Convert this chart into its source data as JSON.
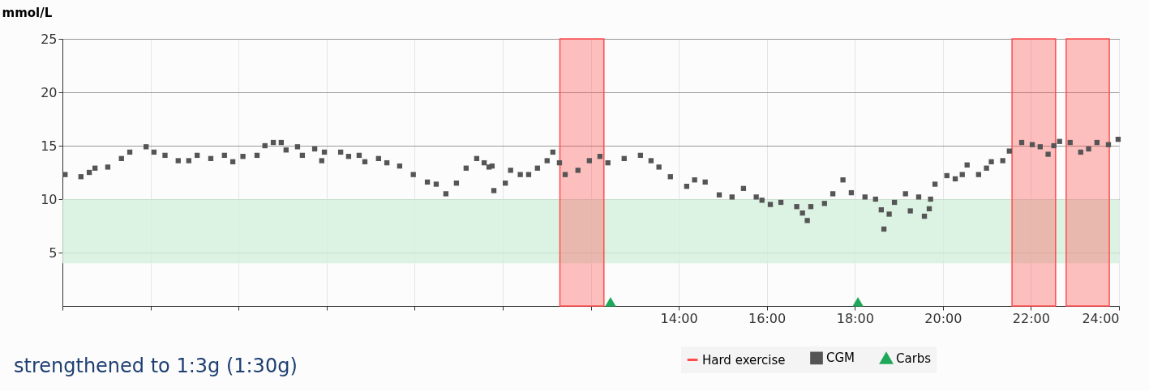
{
  "chart_data": {
    "type": "scatter",
    "ylabel": "mmol/L",
    "xlim": [
      0,
      24
    ],
    "ylim": [
      0,
      25
    ],
    "xticks": [
      {
        "value": 0,
        "label": null
      },
      {
        "value": 2,
        "label": null
      },
      {
        "value": 4,
        "label": null
      },
      {
        "value": 6,
        "label": null
      },
      {
        "value": 8,
        "label": null
      },
      {
        "value": 10,
        "label": null
      },
      {
        "value": 12,
        "label": null
      },
      {
        "value": 14,
        "label": "14:00"
      },
      {
        "value": 16,
        "label": "16:00"
      },
      {
        "value": 18,
        "label": "18:00"
      },
      {
        "value": 20,
        "label": "20:00"
      },
      {
        "value": 22,
        "label": "22:00"
      },
      {
        "value": 24,
        "label": "24:00"
      }
    ],
    "yticks": [
      5,
      10,
      15,
      20,
      25
    ],
    "grid": true,
    "legend": "bottom right",
    "series": [
      {
        "name": "CGM",
        "marker": "square",
        "color": "#555555",
        "x": [
          0.06,
          0.42,
          0.61,
          0.74,
          1.03,
          1.34,
          1.53,
          1.9,
          2.08,
          2.33,
          2.63,
          2.87,
          3.06,
          3.37,
          3.68,
          3.87,
          4.1,
          4.42,
          4.6,
          4.79,
          4.97,
          5.08,
          5.34,
          5.45,
          5.73,
          5.89,
          5.95,
          6.32,
          6.5,
          6.74,
          6.87,
          7.18,
          7.37,
          7.66,
          7.97,
          8.29,
          8.49,
          8.71,
          8.95,
          9.17,
          9.41,
          9.58,
          9.69,
          9.76,
          9.8,
          10.06,
          10.18,
          10.4,
          10.59,
          10.79,
          11.01,
          11.14,
          11.29,
          11.42,
          11.71,
          11.97,
          12.21,
          12.39,
          12.76,
          13.13,
          13.37,
          13.55,
          13.81,
          14.18,
          14.36,
          14.6,
          14.92,
          15.21,
          15.47,
          15.76,
          15.89,
          16.08,
          16.32,
          16.68,
          16.81,
          16.92,
          17.0,
          17.31,
          17.5,
          17.73,
          17.92,
          18.23,
          18.47,
          18.6,
          18.66,
          18.78,
          18.9,
          19.15,
          19.26,
          19.45,
          19.58,
          19.69,
          19.72,
          19.82,
          20.09,
          20.28,
          20.44,
          20.55,
          20.81,
          20.99,
          21.1,
          21.36,
          21.51,
          21.79,
          22.03,
          22.21,
          22.39,
          22.52,
          22.65,
          22.89,
          23.13,
          23.31,
          23.5,
          23.76,
          23.98
        ],
        "values": [
          12.3,
          12.1,
          12.5,
          12.9,
          13.0,
          13.8,
          14.4,
          14.9,
          14.4,
          14.1,
          13.6,
          13.6,
          14.1,
          13.8,
          14.1,
          13.5,
          14.0,
          14.1,
          15.0,
          15.3,
          15.3,
          14.6,
          14.9,
          14.1,
          14.7,
          13.6,
          14.4,
          14.4,
          14.0,
          14.1,
          13.5,
          13.8,
          13.4,
          13.1,
          12.3,
          11.6,
          11.4,
          10.5,
          11.5,
          12.9,
          13.8,
          13.4,
          13.0,
          13.1,
          10.8,
          11.5,
          12.7,
          12.3,
          12.3,
          12.9,
          13.6,
          14.4,
          13.4,
          12.3,
          12.7,
          13.6,
          14.0,
          13.4,
          13.8,
          14.1,
          13.6,
          13.0,
          12.1,
          11.2,
          11.8,
          11.6,
          10.4,
          10.2,
          11.0,
          10.2,
          9.9,
          9.5,
          9.7,
          9.3,
          8.7,
          8.0,
          9.3,
          9.6,
          10.5,
          11.8,
          10.6,
          10.2,
          10.0,
          9.0,
          7.2,
          8.6,
          9.7,
          10.5,
          8.9,
          10.2,
          8.4,
          9.1,
          10.0,
          11.4,
          12.2,
          11.9,
          12.3,
          13.2,
          12.3,
          12.9,
          13.5,
          13.6,
          14.5,
          15.3,
          15.1,
          14.9,
          14.2,
          15.0,
          15.4,
          15.3,
          14.4,
          14.7,
          15.3,
          15.1,
          15.6
        ]
      },
      {
        "name": "Carbs",
        "marker": "triangle",
        "color": "#1fa85a",
        "x": [
          12.45,
          18.07
        ],
        "values": [
          0.4,
          0.4
        ]
      }
    ],
    "bands": [
      {
        "axis": "y",
        "from": 4,
        "to": 10,
        "color": "#d4efdc"
      },
      {
        "axis": "x",
        "from": 11.3,
        "to": 12.3,
        "color": "#ff4d4d",
        "label": "Hard exercise"
      },
      {
        "axis": "x",
        "from": 21.57,
        "to": 22.56,
        "color": "#ff4d4d"
      },
      {
        "axis": "x",
        "from": 22.8,
        "to": 23.78,
        "color": "#ff4d4d"
      }
    ],
    "annotations": [
      "strengthened to 1:3g (1:30g)"
    ]
  }
}
